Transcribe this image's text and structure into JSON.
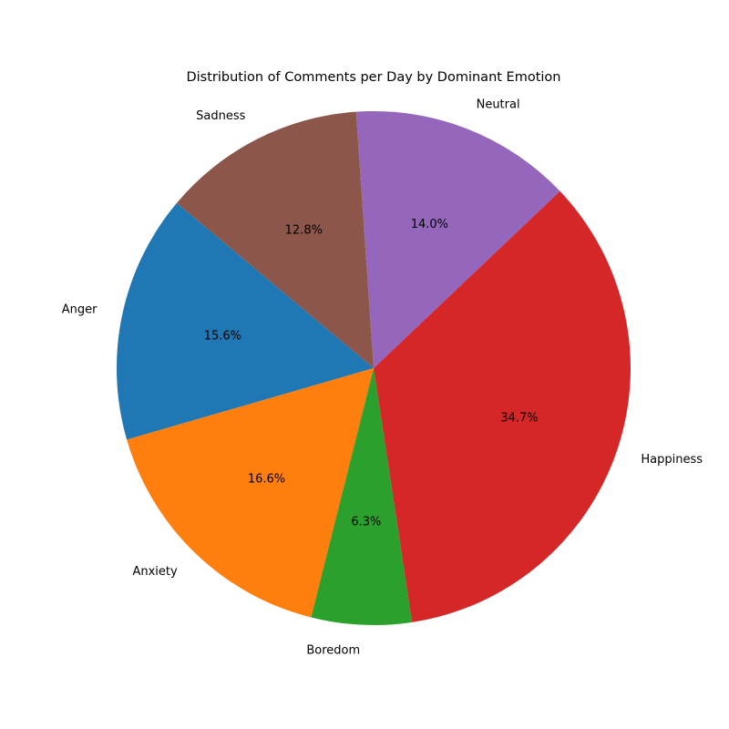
{
  "chart_data": {
    "type": "pie",
    "title": "Distribution of Comments per Day by Dominant Emotion",
    "categories": [
      "Anger",
      "Anxiety",
      "Boredom",
      "Happiness",
      "Neutral",
      "Sadness"
    ],
    "values": [
      15.6,
      16.6,
      6.3,
      34.7,
      14.0,
      12.8
    ],
    "percent_labels": [
      "15.6%",
      "16.6%",
      "6.3%",
      "34.7%",
      "14.0%",
      "12.8%"
    ],
    "colors": [
      "#1f77b4",
      "#ff7f0e",
      "#2ca02c",
      "#d62728",
      "#9467bd",
      "#8c564b"
    ],
    "start_angle_deg": 140,
    "direction": "counterclockwise",
    "legend": "none"
  }
}
